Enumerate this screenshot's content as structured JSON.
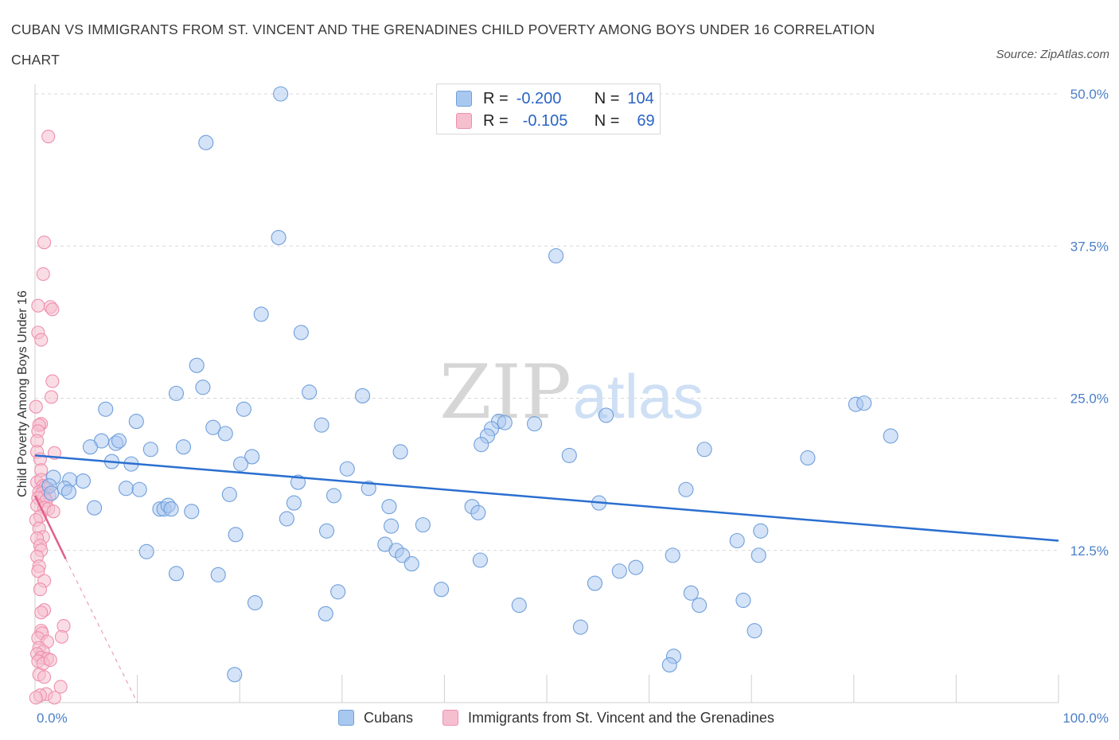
{
  "header": {
    "title": "CUBAN VS IMMIGRANTS FROM ST. VINCENT AND THE GRENADINES CHILD POVERTY AMONG BOYS UNDER 16 CORRELATION CHART",
    "source": "Source: ZipAtlas.com"
  },
  "legend": {
    "r_label": "R =",
    "n_label": "N =",
    "rows": [
      {
        "r": "-0.200",
        "n": "104"
      },
      {
        "r": "-0.105",
        "n": "69"
      }
    ]
  },
  "bottom_legend": [
    "Cubans",
    "Immigrants from St. Vincent and the Grenadines"
  ],
  "watermark": {
    "zip": "ZIP",
    "atlas": "atlas"
  },
  "colors": {
    "blue_fill": "#a9c8f0",
    "blue_stroke": "#6f9fdc",
    "blue_line": "#2a6fd0",
    "pink_fill": "#f6bfd0",
    "pink_stroke": "#ee8fae",
    "pink_line": "#e0608a",
    "grid": "#d8d8d8",
    "tick_label": "#4a7fc8"
  },
  "chart_data": {
    "type": "scatter",
    "ylabel": "Child Poverty Among Boys Under 16",
    "xlim": [
      0,
      100
    ],
    "ylim": [
      0,
      50
    ],
    "x_tick_labels": [
      "0.0%",
      "100.0%"
    ],
    "y_ticks": [
      12.5,
      25.0,
      37.5,
      50.0
    ],
    "y_tick_labels": [
      "12.5%",
      "25.0%",
      "37.5%",
      "50.0%"
    ],
    "grid": true,
    "legend_position": "top-center",
    "series": [
      {
        "name": "Cubans",
        "R": -0.2,
        "N": 104,
        "trendline": {
          "x": [
            0,
            100
          ],
          "y": [
            20.3,
            13.3
          ]
        },
        "points": [
          [
            24,
            50
          ],
          [
            16.7,
            46
          ],
          [
            23.8,
            38.2
          ],
          [
            50.9,
            36.7
          ],
          [
            22.1,
            31.9
          ],
          [
            26,
            30.4
          ],
          [
            15.8,
            27.7
          ],
          [
            16.4,
            25.9
          ],
          [
            13.8,
            25.4
          ],
          [
            26.8,
            25.5
          ],
          [
            32,
            25.2
          ],
          [
            6.9,
            24.1
          ],
          [
            20.4,
            24.1
          ],
          [
            9.9,
            23.1
          ],
          [
            17.4,
            22.6
          ],
          [
            18.6,
            22.1
          ],
          [
            28,
            22.8
          ],
          [
            45.3,
            23.1
          ],
          [
            45.9,
            23
          ],
          [
            44.6,
            22.5
          ],
          [
            44.2,
            21.9
          ],
          [
            48.8,
            22.9
          ],
          [
            80.2,
            24.5
          ],
          [
            81,
            24.6
          ],
          [
            55.8,
            23.6
          ],
          [
            83.6,
            21.9
          ],
          [
            6.5,
            21.5
          ],
          [
            7.9,
            21.3
          ],
          [
            8.2,
            21.5
          ],
          [
            5.4,
            21
          ],
          [
            11.3,
            20.8
          ],
          [
            14.5,
            21
          ],
          [
            35.7,
            20.6
          ],
          [
            43.6,
            21.2
          ],
          [
            52.2,
            20.3
          ],
          [
            65.4,
            20.8
          ],
          [
            75.5,
            20.1
          ],
          [
            21.2,
            20.2
          ],
          [
            20.1,
            19.6
          ],
          [
            7.5,
            19.8
          ],
          [
            9.4,
            19.6
          ],
          [
            30.5,
            19.2
          ],
          [
            1.8,
            18.5
          ],
          [
            3.4,
            18.3
          ],
          [
            4.7,
            18.2
          ],
          [
            1.4,
            17.8
          ],
          [
            2.9,
            17.6
          ],
          [
            3.3,
            17.3
          ],
          [
            1.6,
            17.2
          ],
          [
            8.9,
            17.6
          ],
          [
            10.2,
            17.5
          ],
          [
            25.7,
            18.1
          ],
          [
            32.6,
            17.6
          ],
          [
            19,
            17.1
          ],
          [
            29.2,
            17
          ],
          [
            55.1,
            16.4
          ],
          [
            63.6,
            17.5
          ],
          [
            5.8,
            16
          ],
          [
            12.2,
            15.9
          ],
          [
            12.6,
            15.9
          ],
          [
            13,
            16.2
          ],
          [
            13.3,
            15.9
          ],
          [
            15.3,
            15.7
          ],
          [
            25.3,
            16.4
          ],
          [
            34.6,
            16.1
          ],
          [
            42.7,
            16.1
          ],
          [
            43.3,
            15.6
          ],
          [
            24.6,
            15.1
          ],
          [
            28.5,
            14.1
          ],
          [
            34.8,
            14.5
          ],
          [
            37.9,
            14.6
          ],
          [
            19.6,
            13.8
          ],
          [
            70.9,
            14.1
          ],
          [
            68.6,
            13.3
          ],
          [
            34.2,
            13
          ],
          [
            35.3,
            12.5
          ],
          [
            35.9,
            12.1
          ],
          [
            36.8,
            11.4
          ],
          [
            43.5,
            11.7
          ],
          [
            62.3,
            12.1
          ],
          [
            70.7,
            12.1
          ],
          [
            10.9,
            12.4
          ],
          [
            13.8,
            10.6
          ],
          [
            17.9,
            10.5
          ],
          [
            57.1,
            10.8
          ],
          [
            58.7,
            11.1
          ],
          [
            54.7,
            9.8
          ],
          [
            39.7,
            9.3
          ],
          [
            29.6,
            9.1
          ],
          [
            21.5,
            8.2
          ],
          [
            47.3,
            8
          ],
          [
            64.1,
            9
          ],
          [
            64.9,
            8
          ],
          [
            69.2,
            8.4
          ],
          [
            28.4,
            7.3
          ],
          [
            53.3,
            6.2
          ],
          [
            70.3,
            5.9
          ],
          [
            62.4,
            3.8
          ],
          [
            62,
            3.1
          ],
          [
            19.5,
            2.3
          ]
        ]
      },
      {
        "name": "Immigrants from St. Vincent and the Grenadines",
        "R": -0.105,
        "N": 69,
        "trendline": {
          "x": [
            0,
            3
          ],
          "y": [
            17,
            11.8
          ]
        },
        "trendline_dashed": {
          "x": [
            3,
            10
          ],
          "y": [
            11.8,
            0
          ]
        },
        "points": [
          [
            1.3,
            46.5
          ],
          [
            0.9,
            37.8
          ],
          [
            0.8,
            35.2
          ],
          [
            0.3,
            32.6
          ],
          [
            1.5,
            32.5
          ],
          [
            1.7,
            32.3
          ],
          [
            0.3,
            30.4
          ],
          [
            0.6,
            29.8
          ],
          [
            1.7,
            26.4
          ],
          [
            1.6,
            25.1
          ],
          [
            0.1,
            24.3
          ],
          [
            0.6,
            22.9
          ],
          [
            0.4,
            22.8
          ],
          [
            0.3,
            22.3
          ],
          [
            0.2,
            21.5
          ],
          [
            0.2,
            20.6
          ],
          [
            1.9,
            20.5
          ],
          [
            0.5,
            20
          ],
          [
            0.6,
            19.1
          ],
          [
            0.2,
            18.1
          ],
          [
            0.6,
            18.3
          ],
          [
            0.8,
            17.8
          ],
          [
            1,
            17.7
          ],
          [
            1.2,
            17.6
          ],
          [
            0.4,
            17.3
          ],
          [
            0.7,
            17.2
          ],
          [
            1.4,
            17
          ],
          [
            0.9,
            16.9
          ],
          [
            0.3,
            16.8
          ],
          [
            1.1,
            16.6
          ],
          [
            0.2,
            16.2
          ],
          [
            0.9,
            16
          ],
          [
            1.3,
            15.9
          ],
          [
            1.8,
            15.7
          ],
          [
            0.5,
            15.3
          ],
          [
            0.1,
            15
          ],
          [
            0.4,
            14.3
          ],
          [
            0.8,
            13.6
          ],
          [
            0.2,
            13.5
          ],
          [
            0.5,
            12.9
          ],
          [
            0.6,
            12.5
          ],
          [
            0.2,
            12
          ],
          [
            0.4,
            11.2
          ],
          [
            0.3,
            10.8
          ],
          [
            0.9,
            10
          ],
          [
            0.5,
            9.3
          ],
          [
            0.9,
            7.6
          ],
          [
            0.6,
            7.4
          ],
          [
            2.8,
            6.3
          ],
          [
            0.6,
            5.9
          ],
          [
            0.7,
            5.7
          ],
          [
            0.3,
            5.3
          ],
          [
            1.2,
            5
          ],
          [
            2.6,
            5.4
          ],
          [
            0.4,
            4.5
          ],
          [
            0.8,
            4.2
          ],
          [
            0.2,
            4
          ],
          [
            0.6,
            3.7
          ],
          [
            1.2,
            3.6
          ],
          [
            0.3,
            3.4
          ],
          [
            0.8,
            3.2
          ],
          [
            1.5,
            3.5
          ],
          [
            0.4,
            2.3
          ],
          [
            0.9,
            2.1
          ],
          [
            2.5,
            1.3
          ],
          [
            1.1,
            0.7
          ],
          [
            0.5,
            0.6
          ],
          [
            0.1,
            0.4
          ],
          [
            1.9,
            0.4
          ]
        ]
      }
    ]
  }
}
